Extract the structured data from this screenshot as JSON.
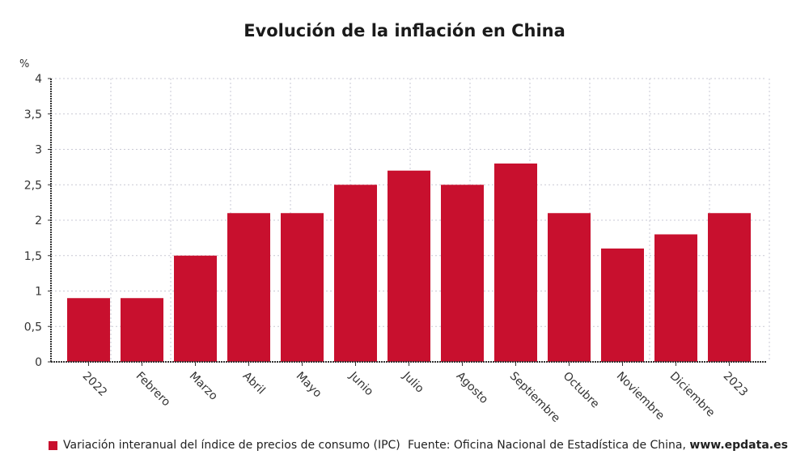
{
  "chart_data": {
    "type": "bar",
    "title": "Evolución de la inflación en China",
    "ylabel": "%",
    "xlabel": "",
    "ylim": [
      0,
      4
    ],
    "yticks": [
      0,
      0.5,
      1,
      1.5,
      2,
      2.5,
      3,
      3.5,
      4
    ],
    "ytick_labels": [
      "0",
      "0,5",
      "1",
      "1,5",
      "2",
      "2,5",
      "3",
      "3,5",
      "4"
    ],
    "categories": [
      "2022",
      "Febrero",
      "Marzo",
      "Abril",
      "Mayo",
      "Junio",
      "Julio",
      "Agosto",
      "Septiembre",
      "Octubre",
      "Noviembre",
      "Diciembre",
      "2023"
    ],
    "series": [
      {
        "name": "Variación interanual del índice de precios de consumo (IPC)",
        "values": [
          0.9,
          0.9,
          1.5,
          2.1,
          2.1,
          2.5,
          2.7,
          2.5,
          2.8,
          2.1,
          1.6,
          1.8,
          2.1
        ],
        "color": "#c8102e"
      }
    ],
    "grid": true,
    "legend": "bottom-left"
  },
  "source_label": "Fuente: Oficina Nacional de Estadística de China, ",
  "source_site": "www.epdata.es"
}
